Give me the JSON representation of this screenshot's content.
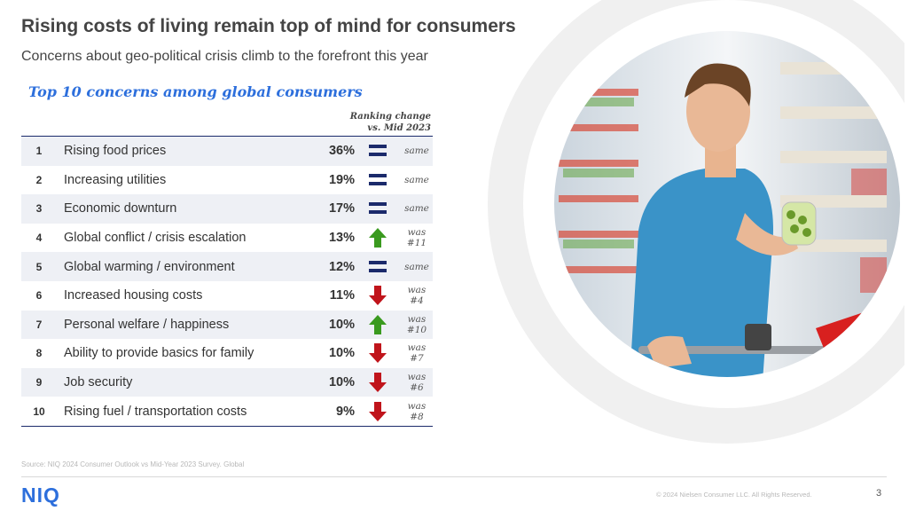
{
  "title": "Rising costs of living remain top of mind for consumers",
  "subtitle": "Concerns about geo-political crisis climb to the forefront this year",
  "table_heading": "Top 10 concerns among global consumers",
  "ranking_change_header": [
    "Ranking change",
    "vs. Mid 2023"
  ],
  "rows": [
    {
      "rank": "1",
      "label": "Rising food prices",
      "pct": "36%",
      "icon": "equals-icon",
      "change": "same"
    },
    {
      "rank": "2",
      "label": "Increasing utilities",
      "pct": "19%",
      "icon": "equals-icon",
      "change": "same"
    },
    {
      "rank": "3",
      "label": "Economic downturn",
      "pct": "17%",
      "icon": "equals-icon",
      "change": "same"
    },
    {
      "rank": "4",
      "label": "Global conflict / crisis escalation",
      "pct": "13%",
      "icon": "arrow-up-icon",
      "change": "was #11"
    },
    {
      "rank": "5",
      "label": "Global warming / environment",
      "pct": "12%",
      "icon": "equals-icon",
      "change": "same"
    },
    {
      "rank": "6",
      "label": "Increased housing costs",
      "pct": "11%",
      "icon": "arrow-down-icon",
      "change": "was #4"
    },
    {
      "rank": "7",
      "label": "Personal welfare / happiness",
      "pct": "10%",
      "icon": "arrow-up-icon",
      "change": "was #10"
    },
    {
      "rank": "8",
      "label": "Ability to provide basics for family",
      "pct": "10%",
      "icon": "arrow-down-icon",
      "change": "was #7"
    },
    {
      "rank": "9",
      "label": "Job security",
      "pct": "10%",
      "icon": "arrow-down-icon",
      "change": "was #6"
    },
    {
      "rank": "10",
      "label": "Rising fuel / transportation costs",
      "pct": "9%",
      "icon": "arrow-down-icon",
      "change": "was #8"
    }
  ],
  "source": "Source: NIQ 2024 Consumer Outlook vs Mid-Year 2023 Survey. Global",
  "logo": "NIQ",
  "copyright": "© 2024 Nielsen Consumer LLC. All Rights Reserved.",
  "page_number": "3",
  "colors": {
    "accent": "#2d6fdc",
    "up": "#3a9a1f",
    "down": "#c0141b",
    "equal": "#1b2a6b",
    "rule": "#1b2a6b"
  }
}
